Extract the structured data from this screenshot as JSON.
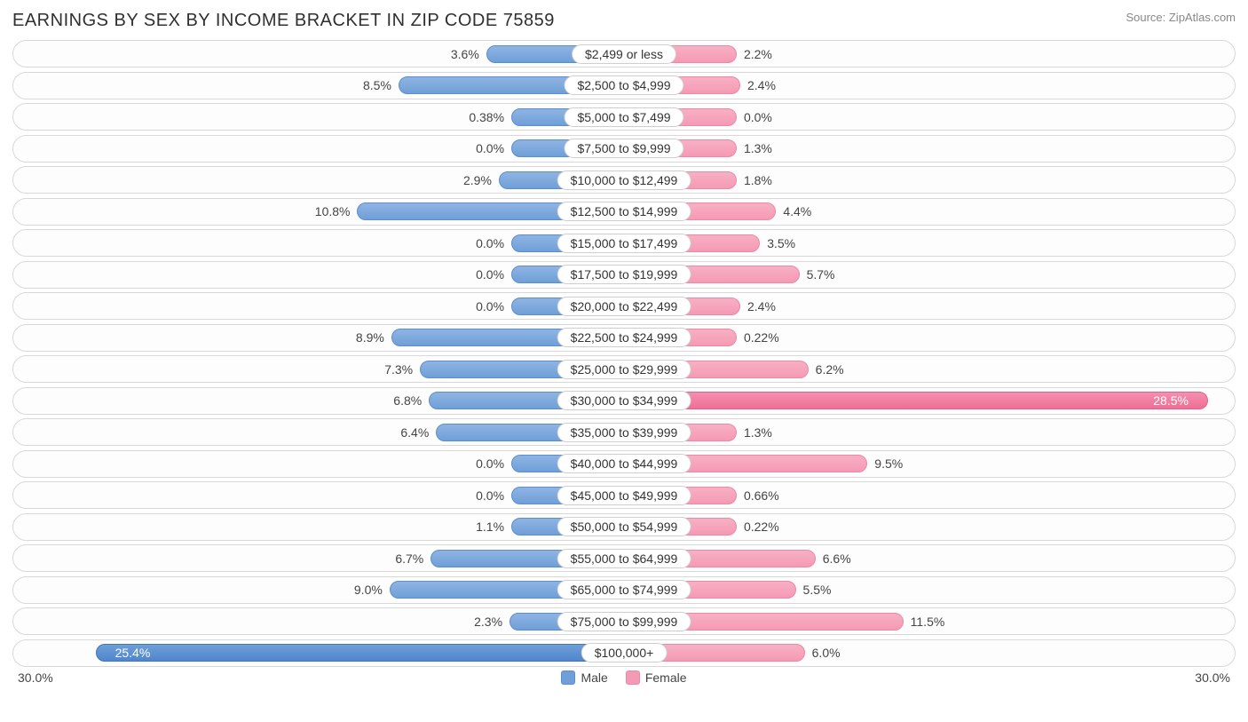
{
  "title": "EARNINGS BY SEX BY INCOME BRACKET IN ZIP CODE 75859",
  "source": "Source: ZipAtlas.com",
  "axis_max_pct": 30.0,
  "axis_max_label": "30.0%",
  "legend": {
    "male": "Male",
    "female": "Female"
  },
  "colors": {
    "male_bar": "#6f9fd8",
    "male_bar_hi": "#4f86cc",
    "female_bar": "#f59ab4",
    "female_bar_hi": "#ef6f97",
    "track_border": "#d8d8d8",
    "label_border": "#cfcfcf",
    "text": "#444444",
    "title": "#303030",
    "source": "#888888",
    "background": "#ffffff"
  },
  "min_bar_pct": 2.2,
  "label_half_width_pct": 12,
  "rows": [
    {
      "category": "$2,499 or less",
      "male": 3.6,
      "female": 2.2,
      "male_label": "3.6%",
      "female_label": "2.2%"
    },
    {
      "category": "$2,500 to $4,999",
      "male": 8.5,
      "female": 2.4,
      "male_label": "8.5%",
      "female_label": "2.4%"
    },
    {
      "category": "$5,000 to $7,499",
      "male": 0.38,
      "female": 0.0,
      "male_label": "0.38%",
      "female_label": "0.0%"
    },
    {
      "category": "$7,500 to $9,999",
      "male": 0.0,
      "female": 1.3,
      "male_label": "0.0%",
      "female_label": "1.3%"
    },
    {
      "category": "$10,000 to $12,499",
      "male": 2.9,
      "female": 1.8,
      "male_label": "2.9%",
      "female_label": "1.8%"
    },
    {
      "category": "$12,500 to $14,999",
      "male": 10.8,
      "female": 4.4,
      "male_label": "10.8%",
      "female_label": "4.4%"
    },
    {
      "category": "$15,000 to $17,499",
      "male": 0.0,
      "female": 3.5,
      "male_label": "0.0%",
      "female_label": "3.5%"
    },
    {
      "category": "$17,500 to $19,999",
      "male": 0.0,
      "female": 5.7,
      "male_label": "0.0%",
      "female_label": "5.7%"
    },
    {
      "category": "$20,000 to $22,499",
      "male": 0.0,
      "female": 2.4,
      "male_label": "0.0%",
      "female_label": "2.4%"
    },
    {
      "category": "$22,500 to $24,999",
      "male": 8.9,
      "female": 0.22,
      "male_label": "8.9%",
      "female_label": "0.22%"
    },
    {
      "category": "$25,000 to $29,999",
      "male": 7.3,
      "female": 6.2,
      "male_label": "7.3%",
      "female_label": "6.2%"
    },
    {
      "category": "$30,000 to $34,999",
      "male": 6.8,
      "female": 28.5,
      "male_label": "6.8%",
      "female_label": "28.5%"
    },
    {
      "category": "$35,000 to $39,999",
      "male": 6.4,
      "female": 1.3,
      "male_label": "6.4%",
      "female_label": "1.3%"
    },
    {
      "category": "$40,000 to $44,999",
      "male": 0.0,
      "female": 9.5,
      "male_label": "0.0%",
      "female_label": "9.5%"
    },
    {
      "category": "$45,000 to $49,999",
      "male": 0.0,
      "female": 0.66,
      "male_label": "0.0%",
      "female_label": "0.66%"
    },
    {
      "category": "$50,000 to $54,999",
      "male": 1.1,
      "female": 0.22,
      "male_label": "1.1%",
      "female_label": "0.22%"
    },
    {
      "category": "$55,000 to $64,999",
      "male": 6.7,
      "female": 6.6,
      "male_label": "6.7%",
      "female_label": "6.6%"
    },
    {
      "category": "$65,000 to $74,999",
      "male": 9.0,
      "female": 5.5,
      "male_label": "9.0%",
      "female_label": "5.5%"
    },
    {
      "category": "$75,000 to $99,999",
      "male": 2.3,
      "female": 11.5,
      "male_label": "2.3%",
      "female_label": "11.5%"
    },
    {
      "category": "$100,000+",
      "male": 25.4,
      "female": 6.0,
      "male_label": "25.4%",
      "female_label": "6.0%"
    }
  ]
}
